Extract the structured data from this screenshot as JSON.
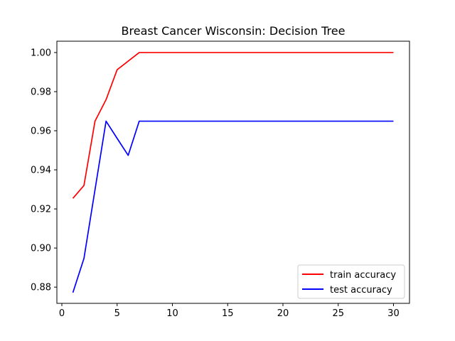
{
  "chart_data": {
    "type": "line",
    "title": "Breast Cancer Wisconsin: Decision Tree",
    "xlabel": "",
    "ylabel": "",
    "xlim": [
      -0.45,
      31.45
    ],
    "ylim": [
      0.8717,
      1.0058
    ],
    "xticks": [
      0,
      5,
      10,
      15,
      20,
      25,
      30
    ],
    "xtick_labels": [
      "0",
      "5",
      "10",
      "15",
      "20",
      "25",
      "30"
    ],
    "yticks": [
      0.88,
      0.9,
      0.92,
      0.94,
      0.96,
      0.98,
      1.0
    ],
    "ytick_labels": [
      "0.88",
      "0.90",
      "0.92",
      "0.94",
      "0.96",
      "0.98",
      "1.00"
    ],
    "grid": false,
    "legend_position": "bottom-right",
    "x": [
      1,
      2,
      3,
      4,
      5,
      6,
      7,
      8,
      9,
      10,
      11,
      12,
      13,
      14,
      15,
      16,
      17,
      18,
      19,
      20,
      21,
      22,
      23,
      24,
      25,
      26,
      27,
      28,
      29,
      30
    ],
    "series": [
      {
        "name": "train accuracy",
        "color": "#ff0000",
        "values": [
          0.9254,
          0.932,
          0.9649,
          0.9759,
          0.9912,
          0.9956,
          1.0,
          1.0,
          1.0,
          1.0,
          1.0,
          1.0,
          1.0,
          1.0,
          1.0,
          1.0,
          1.0,
          1.0,
          1.0,
          1.0,
          1.0,
          1.0,
          1.0,
          1.0,
          1.0,
          1.0,
          1.0,
          1.0,
          1.0,
          1.0
        ]
      },
      {
        "name": "test accuracy",
        "color": "#0000ff",
        "values": [
          0.8772,
          0.8947,
          0.9298,
          0.9649,
          0.9561,
          0.9474,
          0.9649,
          0.9649,
          0.9649,
          0.9649,
          0.9649,
          0.9649,
          0.9649,
          0.9649,
          0.9649,
          0.9649,
          0.9649,
          0.9649,
          0.9649,
          0.9649,
          0.9649,
          0.9649,
          0.9649,
          0.9649,
          0.9649,
          0.9649,
          0.9649,
          0.9649,
          0.9649,
          0.9649
        ]
      }
    ]
  }
}
